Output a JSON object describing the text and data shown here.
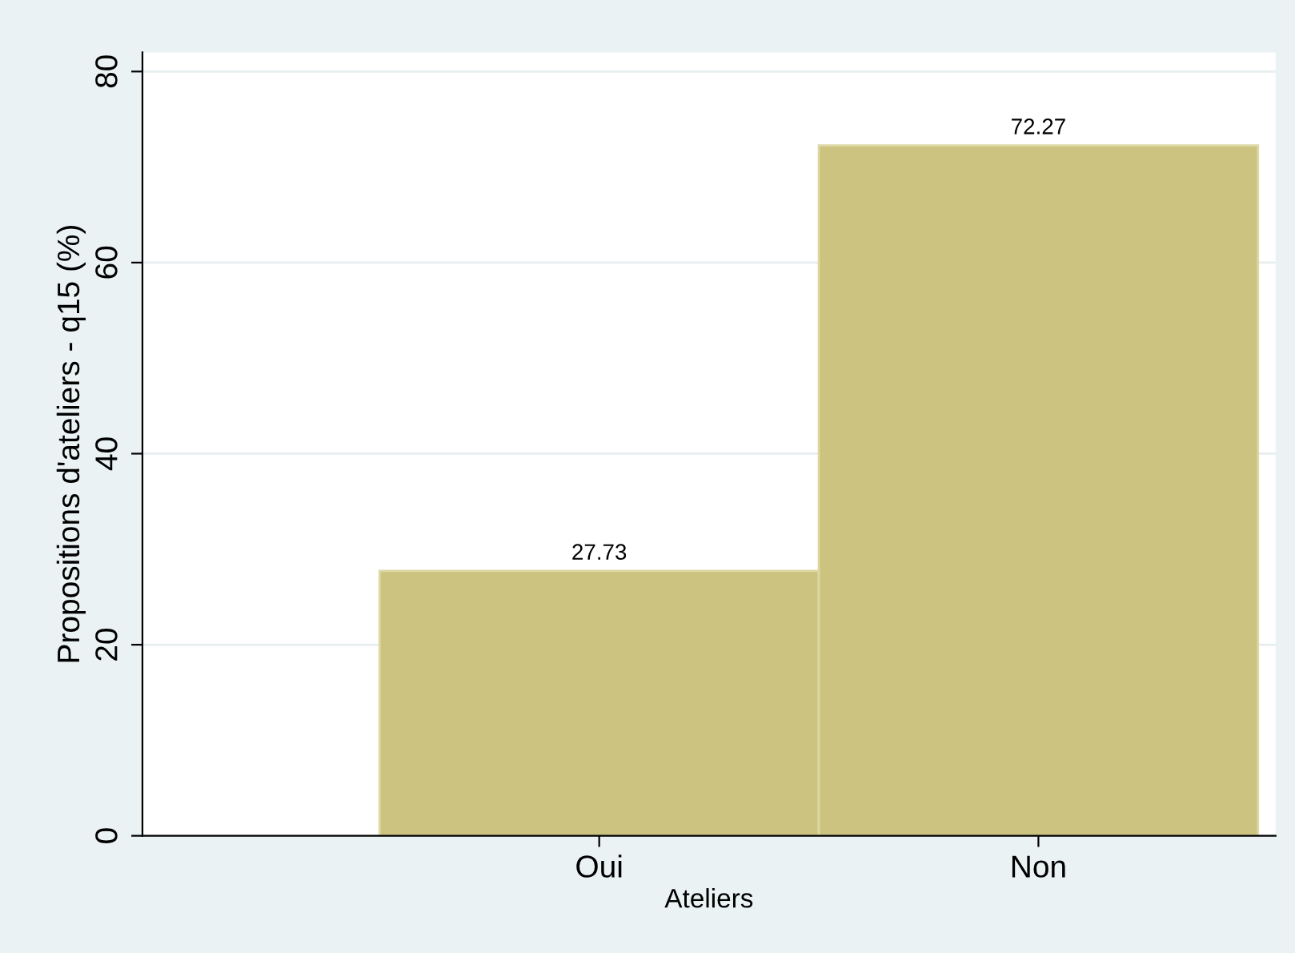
{
  "chart_data": {
    "type": "bar",
    "xlabel": "Ateliers",
    "ylabel": "Propositions d'ateliers - q15 (%)",
    "categories": [
      "Oui",
      "Non"
    ],
    "values": [
      27.73,
      72.27
    ],
    "color": "#cbc37f",
    "ylim": [
      0,
      82
    ],
    "yticks": [
      0,
      20,
      40,
      60,
      80
    ],
    "grid": "y",
    "data_labels": true
  }
}
